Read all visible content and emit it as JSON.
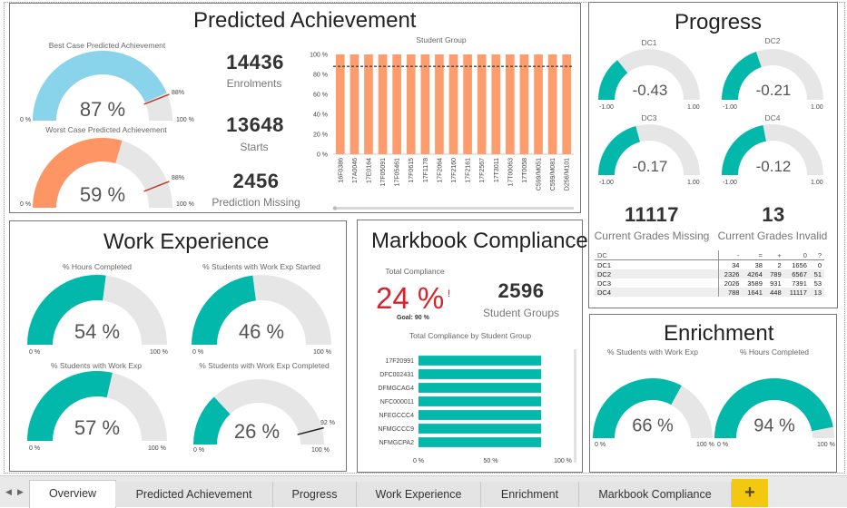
{
  "colors": {
    "teal": "#01b8aa",
    "blue": "#8ad4eb",
    "orange": "#fd9664",
    "bar_orange": "#fd9c6c",
    "track": "#e6e6e6",
    "red": "#c0392b",
    "alert": "#d9232a"
  },
  "predicted": {
    "title": "Predicted Achievement",
    "best": {
      "label": "Best Case Predicted Achievement",
      "value": 87,
      "value_text": "87 %",
      "target": 88,
      "target_text": "88%",
      "min": "0 %",
      "max": "100 %"
    },
    "worst": {
      "label": "Worst Case Predicted Achievement",
      "value": 59,
      "value_text": "59 %",
      "target": 88,
      "target_text": "88%",
      "min": "0 %",
      "max": "100 %"
    },
    "kpis": [
      {
        "value": "14436",
        "label": "Enrolments"
      },
      {
        "value": "13648",
        "label": "Starts"
      },
      {
        "value": "2456",
        "label": "Prediction Missing"
      }
    ],
    "chart_title": "Student Group"
  },
  "chart_data": [
    {
      "type": "bar",
      "title": "Student Group",
      "categories": [
        "16F0386",
        "17A0046",
        "17E0164",
        "17F05091",
        "17F05461",
        "17F0615",
        "17F1178",
        "17F2064",
        "17F2160",
        "17F2161",
        "17F2567",
        "17T3011",
        "17T00063",
        "17T0058",
        "C599/M051",
        "C599/M081",
        "D256/M101"
      ],
      "values": [
        100,
        100,
        100,
        100,
        100,
        100,
        100,
        100,
        100,
        100,
        100,
        100,
        100,
        100,
        100,
        100,
        100
      ],
      "reference_line": 88,
      "ylim": [
        0,
        100
      ],
      "yticks": [
        "0 %",
        "20 %",
        "40 %",
        "60 %",
        "80 %",
        "100 %"
      ]
    },
    {
      "type": "bar",
      "orientation": "horizontal",
      "title": "Total Compliance by Student Group",
      "categories": [
        "17F20991",
        "DFC002431",
        "DFMGCAG4",
        "NFC000011",
        "NFEGCCC4",
        "NFMGCCC9",
        "NFMGCPA2"
      ],
      "values": [
        85,
        85,
        85,
        85,
        85,
        85,
        85
      ],
      "xlim": [
        0,
        100
      ],
      "xticks": [
        "0 %",
        "50 %",
        "100 %"
      ]
    }
  ],
  "progress": {
    "title": "Progress",
    "gauges": [
      {
        "label": "DC1",
        "value": -0.43,
        "value_text": "-0.43",
        "min": "-1.00",
        "max": "1.00"
      },
      {
        "label": "DC2",
        "value": -0.21,
        "value_text": "-0.21",
        "min": "-1.00",
        "max": "1.00"
      },
      {
        "label": "DC3",
        "value": -0.17,
        "value_text": "-0.17",
        "min": "-1.00",
        "max": "1.00"
      },
      {
        "label": "DC4",
        "value": -0.12,
        "value_text": "-0.12",
        "min": "-1.00",
        "max": "1.00"
      }
    ],
    "kpis": [
      {
        "value": "11117",
        "label": "Current Grades Missing"
      },
      {
        "value": "13",
        "label": "Current Grades Invalid"
      }
    ],
    "table": {
      "headers": [
        "DC",
        "-",
        "=",
        "+",
        "0",
        "?"
      ],
      "rows": [
        [
          "DC1",
          "34",
          "38",
          "2",
          "1656",
          "0"
        ],
        [
          "DC2",
          "2326",
          "4264",
          "789",
          "6567",
          "51"
        ],
        [
          "DC3",
          "2026",
          "3589",
          "931",
          "7391",
          "53"
        ],
        [
          "DC4",
          "788",
          "1641",
          "448",
          "11117",
          "13"
        ]
      ]
    }
  },
  "work": {
    "title": "Work Experience",
    "gauges": [
      {
        "label": "% Hours Completed",
        "value": 54,
        "value_text": "54 %",
        "min": "0 %",
        "max": "100 %"
      },
      {
        "label": "% Students with Work Exp Started",
        "value": 46,
        "value_text": "46 %",
        "min": "0 %",
        "max": "100 %"
      },
      {
        "label": "% Students with Work Exp",
        "value": 57,
        "value_text": "57 %",
        "min": "0 %",
        "max": "100 %"
      },
      {
        "label": "% Students with Work Exp Completed",
        "value": 26,
        "value_text": "26 %",
        "min": "0 %",
        "max": "100 %",
        "target": 92,
        "target_text": "92 %"
      }
    ]
  },
  "markbook": {
    "title": "Markbook Compliance",
    "total_label": "Total Compliance",
    "total_value": "24 %",
    "alert": "!",
    "goal": "Goal: 90 %",
    "kpi_value": "2596",
    "kpi_label": "Student Groups"
  },
  "enrichment": {
    "title": "Enrichment",
    "gauges": [
      {
        "label": "% Students with Work Exp",
        "value": 66,
        "value_text": "66 %",
        "min": "0 %",
        "max": "100 %"
      },
      {
        "label": "% Hours Completed",
        "value": 94,
        "value_text": "94 %",
        "min": "0 %",
        "max": "100 %"
      }
    ]
  },
  "tabs": [
    "Overview",
    "Predicted Achievement",
    "Progress",
    "Work Experience",
    "Enrichment",
    "Markbook Compliance"
  ],
  "active_tab": "Overview",
  "add_tab": "+"
}
